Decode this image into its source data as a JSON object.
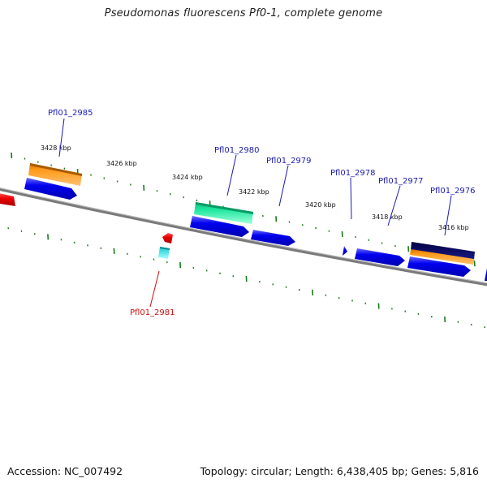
{
  "map": {
    "title": "Pseudomonas fluorescens Pf0-1, complete genome",
    "accession": "Accession: NC_007492",
    "summary": "Topology: circular; Length: 6,438,405 bp; Genes: 5,816"
  },
  "colors": {
    "backbone": "#7a7a7a",
    "forward_gene": "#0000ee",
    "reverse_gene": "#ee0000",
    "forward_label": "#1b1bb0",
    "reverse_label": "#cc1010",
    "tick": "#1a7a1a",
    "feature_orange": "#ff9a1a",
    "feature_green": "#1fe6a0",
    "feature_navy": "#0a0a66",
    "feature_cyan": "#22e8ee"
  },
  "scale_labels": [
    "3428 kbp",
    "3426 kbp",
    "3424 kbp",
    "3422 kbp",
    "3420 kbp",
    "3418 kbp",
    "3416 kbp"
  ],
  "gene_labels": [
    {
      "text": "Pfl01_2985",
      "strand": "forward"
    },
    {
      "text": "Pfl01_2980",
      "strand": "forward"
    },
    {
      "text": "Pfl01_2979",
      "strand": "forward"
    },
    {
      "text": "Pfl01_2978",
      "strand": "forward"
    },
    {
      "text": "Pfl01_2977",
      "strand": "forward"
    },
    {
      "text": "Pfl01_2976",
      "strand": "forward"
    },
    {
      "text": "Pfl01_2981",
      "strand": "reverse"
    }
  ]
}
